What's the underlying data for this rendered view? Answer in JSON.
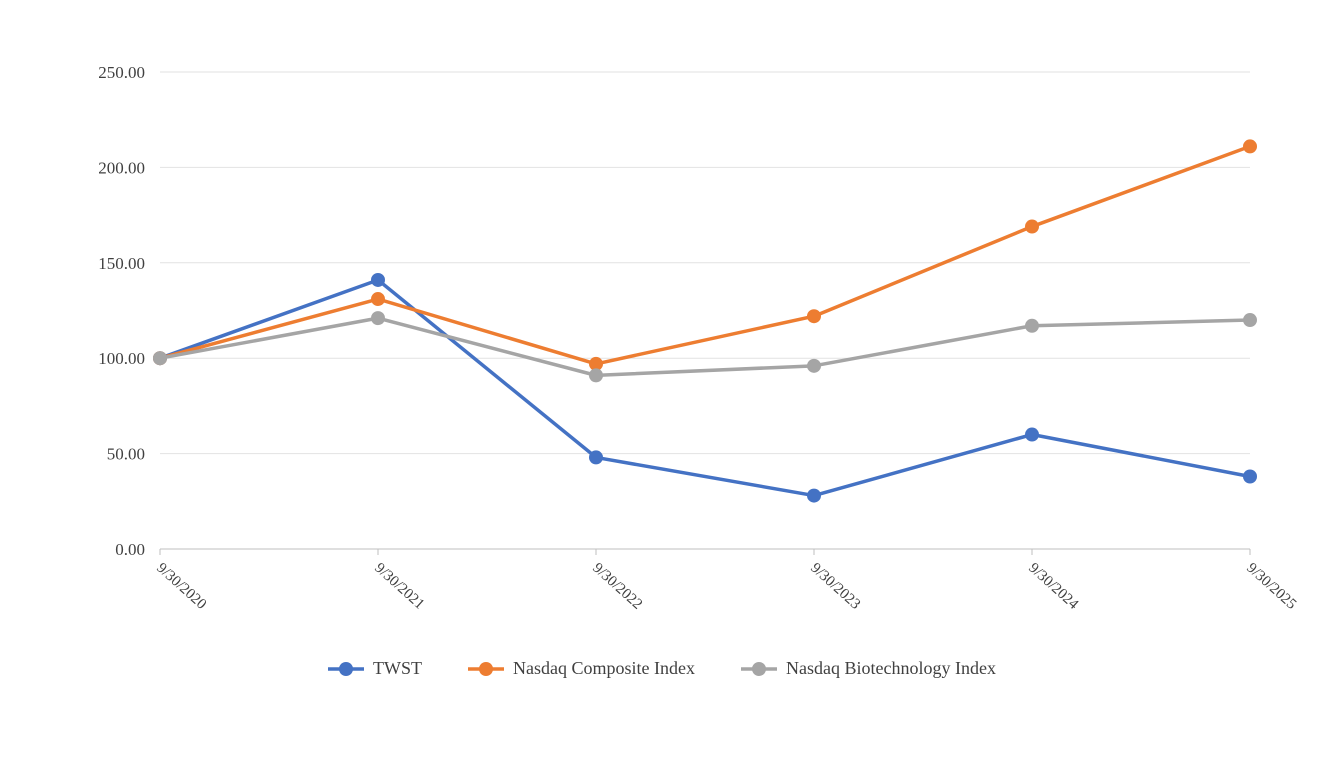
{
  "chart_data": {
    "type": "line",
    "title": "",
    "xlabel": "",
    "ylabel": "",
    "categories": [
      "9/30/2020",
      "9/30/2021",
      "9/30/2022",
      "9/30/2023",
      "9/30/2024",
      "9/30/2025"
    ],
    "series": [
      {
        "name": "TWST",
        "color": "#4472C4",
        "values": [
          100,
          141,
          48,
          28,
          60,
          38
        ]
      },
      {
        "name": "Nasdaq Composite Index",
        "color": "#ED7D31",
        "values": [
          100,
          131,
          97,
          122,
          169,
          211
        ]
      },
      {
        "name": "Nasdaq Biotechnology Index",
        "color": "#A5A5A5",
        "values": [
          100,
          121,
          91,
          96,
          117,
          120
        ]
      }
    ],
    "ylim": [
      0,
      250
    ],
    "ytick_step": 50,
    "ytick_labels": [
      "0.00",
      "50.00",
      "100.00",
      "150.00",
      "200.00",
      "250.00"
    ],
    "grid": true,
    "legend_position": "bottom",
    "gridline_color": "#E2E2E2",
    "axis_color": "#BFBFBF",
    "text_color": "#404040"
  }
}
